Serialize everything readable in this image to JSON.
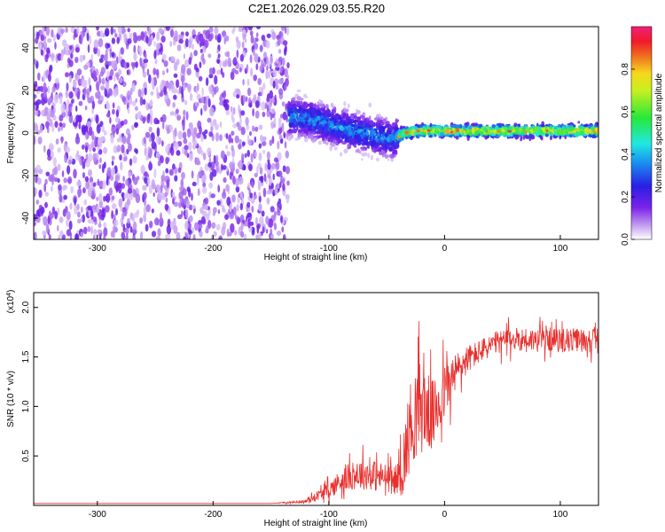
{
  "title": "C2E1.2026.029.03.55.R20",
  "colors": {
    "snr_line": "#e8302e",
    "axis": "#000000",
    "background": "#ffffff"
  },
  "chart_data": [
    {
      "type": "heatmap",
      "xlabel": "Height of straight line (km)",
      "ylabel": "Frequency (Hz)",
      "xlim": [
        -355,
        133
      ],
      "ylim": [
        -50,
        50
      ],
      "xticks": [
        -300,
        -200,
        -100,
        0,
        100
      ],
      "xtick_labels": [
        "-300",
        "-200",
        "-100",
        "0",
        "100"
      ],
      "yticks": [
        -40,
        -20,
        0,
        20,
        40
      ],
      "ytick_labels": [
        "-40",
        "-20",
        "0",
        "20",
        "40"
      ],
      "colorbar": {
        "label": "Normalized spectral amplitude",
        "range": [
          0,
          1
        ],
        "ticks": [
          0.0,
          0.2,
          0.4,
          0.6,
          0.8
        ],
        "tick_labels": [
          "0.0",
          "0.2",
          "0.4",
          "0.6",
          "0.8"
        ],
        "colormap": "rainbow (purple-blue-cyan-green-yellow-red-magenta)"
      },
      "regions": [
        {
          "x": [
            -355,
            -135
          ],
          "description": "broadband low-amplitude noise across all frequencies",
          "amplitude": [
            0.0,
            0.15
          ]
        },
        {
          "x": [
            -135,
            -40
          ],
          "frequency_center": 4,
          "frequency_spread": 10,
          "amplitude": [
            0.1,
            0.45
          ]
        },
        {
          "x": [
            -40,
            133
          ],
          "frequency_center": 1,
          "frequency_spread": 3,
          "amplitude": [
            0.4,
            0.95
          ]
        }
      ],
      "ridge": {
        "x": [
          -135,
          -120,
          -100,
          -80,
          -60,
          -45,
          -35,
          -20,
          0,
          30,
          60,
          100,
          133
        ],
        "frequency": [
          8,
          7,
          4,
          1,
          -1,
          -3,
          0,
          1,
          1,
          1,
          1,
          1,
          1
        ]
      }
    },
    {
      "type": "line",
      "xlabel": "Height of straight line (km)",
      "ylabel": "SNR (10 * v/v)",
      "y_multiplier": "(x10",
      "y_multiplier_exponent": "4",
      "y_multiplier_close": ")",
      "xlim": [
        -355,
        133
      ],
      "ylim": [
        0,
        2.15
      ],
      "xticks": [
        -300,
        -200,
        -100,
        0,
        100
      ],
      "xtick_labels": [
        "-300",
        "-200",
        "-100",
        "0",
        "100"
      ],
      "yticks": [
        0.5,
        1.0,
        1.5,
        2.0
      ],
      "ytick_labels": [
        "0.5",
        "1.0",
        "1.5",
        "2.0"
      ],
      "series": [
        {
          "color": "#e8302e",
          "x": [
            -355,
            -250,
            -150,
            -120,
            -110,
            -100,
            -90,
            -80,
            -70,
            -60,
            -50,
            -45,
            -40,
            -35,
            -30,
            -25,
            -20,
            -15,
            -10,
            -5,
            0,
            5,
            10,
            15,
            20,
            30,
            40,
            50,
            60,
            70,
            80,
            90,
            100,
            110,
            120,
            133
          ],
          "y": [
            0.02,
            0.02,
            0.02,
            0.04,
            0.1,
            0.15,
            0.25,
            0.3,
            0.32,
            0.3,
            0.28,
            0.25,
            0.28,
            0.45,
            0.8,
            0.95,
            1.0,
            0.95,
            0.9,
            1.05,
            1.15,
            1.25,
            1.35,
            1.42,
            1.48,
            1.55,
            1.62,
            1.66,
            1.68,
            1.68,
            1.67,
            1.68,
            1.66,
            1.67,
            1.67,
            1.68
          ],
          "noise": [
            0.0,
            0.0,
            0.0,
            0.02,
            0.06,
            0.1,
            0.15,
            0.18,
            0.2,
            0.2,
            0.18,
            0.15,
            0.2,
            0.45,
            0.55,
            0.6,
            0.6,
            0.5,
            0.45,
            0.45,
            0.35,
            0.3,
            0.25,
            0.22,
            0.18,
            0.15,
            0.15,
            0.15,
            0.15,
            0.15,
            0.15,
            0.15,
            0.15,
            0.15,
            0.15,
            0.15
          ]
        }
      ]
    }
  ]
}
